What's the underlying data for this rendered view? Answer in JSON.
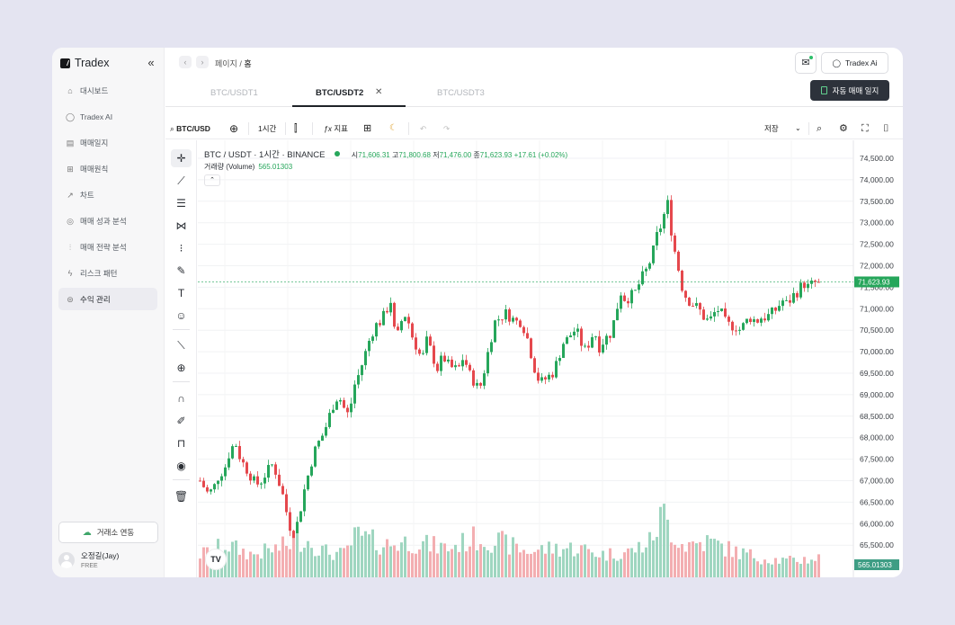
{
  "app": {
    "brand": "Tradex",
    "collapse_icon": "double-chevron-left"
  },
  "sidebar": {
    "items": [
      {
        "label": "대시보드",
        "icon": "home-icon"
      },
      {
        "label": "Tradex AI",
        "icon": "chat-icon"
      },
      {
        "label": "매매일지",
        "icon": "journal-icon"
      },
      {
        "label": "매매원칙",
        "icon": "rules-icon"
      },
      {
        "label": "차트",
        "icon": "trend-icon"
      },
      {
        "label": "매매 성과 분석",
        "icon": "target-icon"
      },
      {
        "label": "매매 전략 분석",
        "icon": "strategy-icon"
      },
      {
        "label": "리스크 패턴",
        "icon": "bolt-icon"
      },
      {
        "label": "수익 관리",
        "icon": "wallet-icon",
        "active": true
      }
    ],
    "connect_label": "거래소 연동",
    "user": {
      "name": "오정길(Jay)",
      "plan": "FREE"
    }
  },
  "header": {
    "breadcrumb_parent": "페이지 /",
    "breadcrumb_current": "홈",
    "ai_button": "Tradex Ai"
  },
  "tabs": [
    {
      "label": "BTC/USDT1",
      "active": false
    },
    {
      "label": "BTC/USDT2",
      "active": true
    },
    {
      "label": "BTC/USDT3",
      "active": false
    }
  ],
  "journal_button": "자동 매매 일지",
  "toolbar": {
    "symbol": "BTC/USD",
    "interval": "1시간",
    "indicators": "지표",
    "save": "저장"
  },
  "legend": {
    "title": "BTC / USDT · 1시간 · BINANCE",
    "open_label": "시",
    "open": "71,606.31",
    "high_label": "고",
    "high": "71,800.68",
    "low_label": "저",
    "low": "71,476.00",
    "close_label": "종",
    "close": "71,623.93",
    "change": "+17.61 (+0.02%)",
    "volume_label": "거래량 (Volume)",
    "volume": "565.01303"
  },
  "colors": {
    "up": "#26a65b",
    "down": "#e5484d",
    "up_vol": "#9fd6c0",
    "down_vol": "#f3aeb1",
    "accent": "#2d323b"
  },
  "chart_data": {
    "type": "candlestick",
    "title": "BTC / USDT · 1시간 · BINANCE",
    "ylim": [
      65000,
      74800
    ],
    "y_ticks": [
      "74,500.00",
      "74,000.00",
      "73,500.00",
      "73,000.00",
      "72,500.00",
      "72,000.00",
      "71,500.00",
      "71,000.00",
      "70,500.00",
      "70,000.00",
      "69,500.00",
      "69,000.00",
      "68,500.00",
      "68,000.00",
      "67,500.00",
      "67,000.00",
      "66,500.00",
      "66,000.00",
      "65,500.00"
    ],
    "last_price_label": "71,623.93",
    "last_volume_label": "565.01303",
    "close_path": [
      [
        0,
        67000
      ],
      [
        6,
        66700
      ],
      [
        10,
        66800
      ],
      [
        14,
        67100
      ],
      [
        19,
        67300
      ],
      [
        23,
        67700
      ],
      [
        27,
        67900
      ],
      [
        31,
        67500
      ],
      [
        35,
        67300
      ],
      [
        39,
        67100
      ],
      [
        43,
        66900
      ],
      [
        47,
        67000
      ],
      [
        51,
        67200
      ],
      [
        56,
        67400
      ],
      [
        60,
        67000
      ],
      [
        64,
        66600
      ],
      [
        68,
        66000
      ],
      [
        72,
        65700
      ],
      [
        76,
        66200
      ],
      [
        80,
        66800
      ],
      [
        85,
        67400
      ],
      [
        89,
        67800
      ],
      [
        93,
        68000
      ],
      [
        97,
        68300
      ],
      [
        101,
        68700
      ],
      [
        106,
        69000
      ],
      [
        110,
        68700
      ],
      [
        114,
        68500
      ],
      [
        118,
        69200
      ],
      [
        122,
        69500
      ],
      [
        126,
        69900
      ],
      [
        130,
        70300
      ],
      [
        134,
        70600
      ],
      [
        138,
        70700
      ],
      [
        142,
        70900
      ],
      [
        146,
        71200
      ],
      [
        150,
        70200
      ],
      [
        154,
        70700
      ],
      [
        158,
        70900
      ],
      [
        162,
        70400
      ],
      [
        166,
        70100
      ],
      [
        170,
        69800
      ],
      [
        174,
        70300
      ],
      [
        178,
        69900
      ],
      [
        182,
        69600
      ],
      [
        186,
        69900
      ],
      [
        190,
        69700
      ],
      [
        194,
        69600
      ],
      [
        198,
        69600
      ],
      [
        202,
        69900
      ],
      [
        206,
        69500
      ],
      [
        210,
        69300
      ],
      [
        214,
        69100
      ],
      [
        218,
        69600
      ],
      [
        222,
        70200
      ],
      [
        226,
        70700
      ],
      [
        230,
        70800
      ],
      [
        234,
        70900
      ],
      [
        238,
        70800
      ],
      [
        242,
        70700
      ],
      [
        246,
        70700
      ],
      [
        250,
        70400
      ],
      [
        254,
        69900
      ],
      [
        258,
        69400
      ],
      [
        262,
        69300
      ],
      [
        266,
        69400
      ],
      [
        270,
        69500
      ],
      [
        274,
        69800
      ],
      [
        278,
        70200
      ],
      [
        282,
        70300
      ],
      [
        286,
        70500
      ],
      [
        290,
        70400
      ],
      [
        294,
        70000
      ],
      [
        298,
        70200
      ],
      [
        302,
        70500
      ],
      [
        306,
        70100
      ],
      [
        310,
        70300
      ],
      [
        314,
        70400
      ],
      [
        318,
        70800
      ],
      [
        322,
        71400
      ],
      [
        326,
        71200
      ],
      [
        330,
        71300
      ],
      [
        334,
        71400
      ],
      [
        338,
        71700
      ],
      [
        342,
        71900
      ],
      [
        346,
        72200
      ],
      [
        350,
        72700
      ],
      [
        354,
        73000
      ],
      [
        358,
        73500
      ],
      [
        362,
        72600
      ],
      [
        366,
        72000
      ],
      [
        370,
        71400
      ],
      [
        374,
        71200
      ],
      [
        378,
        71100
      ],
      [
        382,
        71000
      ],
      [
        386,
        70800
      ],
      [
        390,
        70700
      ],
      [
        394,
        70900
      ],
      [
        398,
        71000
      ],
      [
        402,
        70700
      ],
      [
        406,
        70600
      ],
      [
        410,
        70600
      ],
      [
        414,
        70500
      ],
      [
        418,
        70700
      ],
      [
        422,
        70800
      ],
      [
        426,
        70700
      ],
      [
        430,
        70800
      ],
      [
        434,
        70800
      ],
      [
        438,
        70900
      ],
      [
        442,
        71000
      ],
      [
        446,
        71200
      ],
      [
        450,
        71100
      ],
      [
        454,
        71300
      ],
      [
        458,
        71400
      ],
      [
        462,
        71600
      ],
      [
        466,
        71500
      ],
      [
        470,
        71600
      ],
      [
        474,
        71624
      ]
    ],
    "volume_path": [
      [
        0,
        0.35
      ],
      [
        20,
        0.5
      ],
      [
        40,
        0.35
      ],
      [
        60,
        0.45
      ],
      [
        80,
        0.6
      ],
      [
        95,
        0.4
      ],
      [
        110,
        0.35
      ],
      [
        120,
        0.65
      ],
      [
        140,
        0.5
      ],
      [
        160,
        0.55
      ],
      [
        175,
        0.5
      ],
      [
        190,
        0.45
      ],
      [
        210,
        0.6
      ],
      [
        230,
        0.55
      ],
      [
        250,
        0.4
      ],
      [
        270,
        0.45
      ],
      [
        290,
        0.45
      ],
      [
        310,
        0.35
      ],
      [
        330,
        0.4
      ],
      [
        345,
        0.55
      ],
      [
        355,
        1.0
      ],
      [
        360,
        0.75
      ],
      [
        370,
        0.5
      ],
      [
        390,
        0.55
      ],
      [
        410,
        0.4
      ],
      [
        430,
        0.3
      ],
      [
        450,
        0.25
      ],
      [
        474,
        0.3
      ]
    ]
  }
}
